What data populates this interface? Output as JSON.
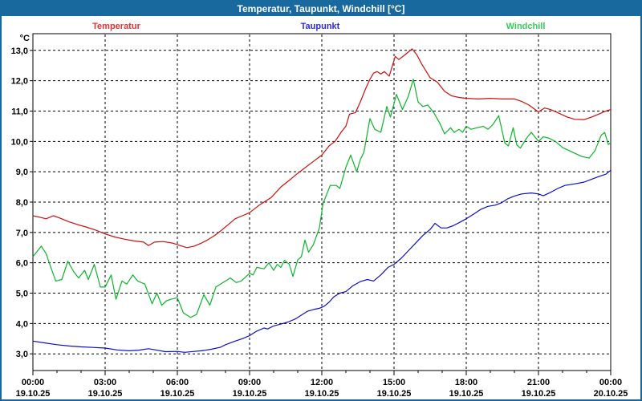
{
  "window": {
    "title": "Temperatur, Taupunkt, Windchill [°C]",
    "titlebar_color": "#186a9e",
    "border_color": "#186a9e",
    "background": "#ffffff"
  },
  "legend": {
    "items": [
      {
        "label": "Temperatur",
        "color": "#e03434"
      },
      {
        "label": "Taupunkt",
        "color": "#2c2cd8"
      },
      {
        "label": "Windchill",
        "color": "#35cc5e"
      }
    ]
  },
  "chart_data": {
    "type": "line",
    "title": "Temperatur, Taupunkt, Windchill [°C]",
    "grid": "dashed",
    "grid_color": "#000000",
    "legend_position": "top",
    "x_axis": {
      "range_hours": [
        0,
        24
      ],
      "major_tick_every_h": 3,
      "minor_tick_every_h": 1,
      "ticks": [
        {
          "h": 0,
          "time": "00:00",
          "date": "19.10.25"
        },
        {
          "h": 3,
          "time": "03:00",
          "date": "19.10.25"
        },
        {
          "h": 6,
          "time": "06:00",
          "date": "19.10.25"
        },
        {
          "h": 9,
          "time": "09:00",
          "date": "19.10.25"
        },
        {
          "h": 12,
          "time": "12:00",
          "date": "19.10.25"
        },
        {
          "h": 15,
          "time": "15:00",
          "date": "19.10.25"
        },
        {
          "h": 18,
          "time": "18:00",
          "date": "19.10.25"
        },
        {
          "h": 21,
          "time": "21:00",
          "date": "19.10.25"
        },
        {
          "h": 24,
          "time": "00:00",
          "date": "20.10.25"
        }
      ]
    },
    "y_axis": {
      "unit": "°C",
      "range": [
        2.45,
        13.55
      ],
      "ticks": [
        {
          "v": 13,
          "label": "13,0"
        },
        {
          "v": 12,
          "label": "12,0"
        },
        {
          "v": 11,
          "label": "11,0"
        },
        {
          "v": 10,
          "label": "10,0"
        },
        {
          "v": 9,
          "label": "9,0"
        },
        {
          "v": 8,
          "label": "8,0"
        },
        {
          "v": 7,
          "label": "7,0"
        },
        {
          "v": 6,
          "label": "6,0"
        },
        {
          "v": 5,
          "label": "5,0"
        },
        {
          "v": 4,
          "label": "4,0"
        },
        {
          "v": 3,
          "label": "3,0"
        }
      ]
    },
    "series": [
      {
        "name": "Temperatur",
        "color": "#cf0d0d",
        "points": [
          [
            0,
            7.55
          ],
          [
            0.3,
            7.5
          ],
          [
            0.55,
            7.45
          ],
          [
            0.85,
            7.55
          ],
          [
            1.1,
            7.48
          ],
          [
            1.5,
            7.35
          ],
          [
            1.9,
            7.25
          ],
          [
            2.2,
            7.18
          ],
          [
            2.6,
            7.08
          ],
          [
            3,
            6.95
          ],
          [
            3.4,
            6.85
          ],
          [
            3.8,
            6.78
          ],
          [
            4.2,
            6.72
          ],
          [
            4.6,
            6.68
          ],
          [
            4.8,
            6.57
          ],
          [
            5.05,
            6.68
          ],
          [
            5.4,
            6.7
          ],
          [
            5.8,
            6.65
          ],
          [
            6.1,
            6.57
          ],
          [
            6.4,
            6.5
          ],
          [
            6.7,
            6.55
          ],
          [
            7,
            6.65
          ],
          [
            7.25,
            6.75
          ],
          [
            7.55,
            6.9
          ],
          [
            7.8,
            7.05
          ],
          [
            8.1,
            7.25
          ],
          [
            8.4,
            7.45
          ],
          [
            8.7,
            7.55
          ],
          [
            9,
            7.65
          ],
          [
            9.4,
            7.9
          ],
          [
            9.9,
            8.15
          ],
          [
            10.3,
            8.5
          ],
          [
            10.7,
            8.75
          ],
          [
            11,
            8.95
          ],
          [
            11.5,
            9.25
          ],
          [
            12,
            9.55
          ],
          [
            12.3,
            9.85
          ],
          [
            12.55,
            10
          ],
          [
            12.8,
            10.3
          ],
          [
            13,
            10.5
          ],
          [
            13.15,
            10.9
          ],
          [
            13.4,
            10.95
          ],
          [
            13.6,
            11.3
          ],
          [
            13.8,
            11.7
          ],
          [
            14,
            12.05
          ],
          [
            14.15,
            12.25
          ],
          [
            14.3,
            12.3
          ],
          [
            14.45,
            12.22
          ],
          [
            14.6,
            12.3
          ],
          [
            14.8,
            12.15
          ],
          [
            15.05,
            12.8
          ],
          [
            15.2,
            12.7
          ],
          [
            15.45,
            12.85
          ],
          [
            15.75,
            13.05
          ],
          [
            15.95,
            12.85
          ],
          [
            16.15,
            12.55
          ],
          [
            16.5,
            12.1
          ],
          [
            16.8,
            11.95
          ],
          [
            17.1,
            11.65
          ],
          [
            17.4,
            11.5
          ],
          [
            17.7,
            11.45
          ],
          [
            18,
            11.42
          ],
          [
            18.5,
            11.4
          ],
          [
            19,
            11.42
          ],
          [
            19.5,
            11.4
          ],
          [
            20,
            11.4
          ],
          [
            20.3,
            11.32
          ],
          [
            20.6,
            11.2
          ],
          [
            21,
            10.97
          ],
          [
            21.25,
            11.1
          ],
          [
            21.5,
            11.05
          ],
          [
            21.8,
            10.95
          ],
          [
            22.2,
            10.8
          ],
          [
            22.5,
            10.73
          ],
          [
            22.9,
            10.72
          ],
          [
            23.2,
            10.8
          ],
          [
            23.5,
            10.9
          ],
          [
            23.8,
            11
          ],
          [
            24,
            11.05
          ]
        ]
      },
      {
        "name": "Taupunkt",
        "color": "#0d0dcf",
        "points": [
          [
            0,
            3.42
          ],
          [
            0.5,
            3.36
          ],
          [
            1,
            3.3
          ],
          [
            1.5,
            3.26
          ],
          [
            2,
            3.23
          ],
          [
            2.5,
            3.21
          ],
          [
            3,
            3.19
          ],
          [
            3.5,
            3.13
          ],
          [
            4,
            3.1
          ],
          [
            4.4,
            3.12
          ],
          [
            4.8,
            3.17
          ],
          [
            5.1,
            3.13
          ],
          [
            5.5,
            3.07
          ],
          [
            6,
            3.08
          ],
          [
            6.3,
            3.05
          ],
          [
            6.7,
            3.08
          ],
          [
            7,
            3.1
          ],
          [
            7.4,
            3.15
          ],
          [
            7.8,
            3.22
          ],
          [
            8,
            3.3
          ],
          [
            8.4,
            3.42
          ],
          [
            8.7,
            3.5
          ],
          [
            9,
            3.6
          ],
          [
            9.3,
            3.75
          ],
          [
            9.6,
            3.85
          ],
          [
            9.75,
            3.82
          ],
          [
            10,
            3.92
          ],
          [
            10.3,
            3.98
          ],
          [
            10.6,
            4.05
          ],
          [
            10.9,
            4.15
          ],
          [
            11.1,
            4.25
          ],
          [
            11.4,
            4.4
          ],
          [
            11.7,
            4.47
          ],
          [
            11.9,
            4.5
          ],
          [
            12.1,
            4.57
          ],
          [
            12.3,
            4.7
          ],
          [
            12.5,
            4.88
          ],
          [
            12.75,
            5
          ],
          [
            13,
            5.05
          ],
          [
            13.3,
            5.25
          ],
          [
            13.6,
            5.38
          ],
          [
            13.9,
            5.45
          ],
          [
            14.15,
            5.4
          ],
          [
            14.45,
            5.6
          ],
          [
            14.75,
            5.85
          ],
          [
            15,
            5.95
          ],
          [
            15.3,
            6.15
          ],
          [
            15.6,
            6.4
          ],
          [
            15.9,
            6.65
          ],
          [
            16.2,
            6.9
          ],
          [
            16.5,
            7.1
          ],
          [
            16.7,
            7.3
          ],
          [
            16.95,
            7.15
          ],
          [
            17.2,
            7.15
          ],
          [
            17.45,
            7.22
          ],
          [
            17.7,
            7.32
          ],
          [
            18,
            7.45
          ],
          [
            18.3,
            7.6
          ],
          [
            18.6,
            7.76
          ],
          [
            18.9,
            7.86
          ],
          [
            19.2,
            7.9
          ],
          [
            19.45,
            7.97
          ],
          [
            19.7,
            8.1
          ],
          [
            20,
            8.2
          ],
          [
            20.3,
            8.27
          ],
          [
            20.7,
            8.3
          ],
          [
            21,
            8.27
          ],
          [
            21.2,
            8.21
          ],
          [
            21.5,
            8.32
          ],
          [
            21.8,
            8.45
          ],
          [
            22.1,
            8.55
          ],
          [
            22.5,
            8.6
          ],
          [
            22.9,
            8.66
          ],
          [
            23.2,
            8.75
          ],
          [
            23.5,
            8.84
          ],
          [
            23.8,
            8.92
          ],
          [
            24,
            9.05
          ]
        ]
      },
      {
        "name": "Windchill",
        "color": "#0bb42a",
        "points": [
          [
            0,
            6.2
          ],
          [
            0.2,
            6.4
          ],
          [
            0.35,
            6.55
          ],
          [
            0.55,
            6.3
          ],
          [
            0.7,
            5.95
          ],
          [
            0.95,
            5.4
          ],
          [
            1.2,
            5.45
          ],
          [
            1.45,
            6.05
          ],
          [
            1.7,
            5.7
          ],
          [
            1.9,
            5.5
          ],
          [
            2.15,
            5.75
          ],
          [
            2.3,
            5.45
          ],
          [
            2.55,
            5.95
          ],
          [
            2.8,
            5.2
          ],
          [
            3,
            5.2
          ],
          [
            3.25,
            5.6
          ],
          [
            3.45,
            4.8
          ],
          [
            3.7,
            5.4
          ],
          [
            3.9,
            5.3
          ],
          [
            4.15,
            5.6
          ],
          [
            4.35,
            5.4
          ],
          [
            4.65,
            5.3
          ],
          [
            4.95,
            4.65
          ],
          [
            5.15,
            5
          ],
          [
            5.35,
            4.6
          ],
          [
            5.55,
            4.75
          ],
          [
            5.75,
            4.8
          ],
          [
            6,
            4.85
          ],
          [
            6.25,
            4.35
          ],
          [
            6.55,
            4.2
          ],
          [
            6.8,
            4.3
          ],
          [
            7.1,
            4.95
          ],
          [
            7.35,
            4.6
          ],
          [
            7.6,
            5.2
          ],
          [
            7.9,
            5.35
          ],
          [
            8.2,
            5.5
          ],
          [
            8.45,
            5.35
          ],
          [
            8.65,
            5.4
          ],
          [
            9,
            5.65
          ],
          [
            9.15,
            5.6
          ],
          [
            9.3,
            5.85
          ],
          [
            9.6,
            5.8
          ],
          [
            9.8,
            6
          ],
          [
            10,
            5.75
          ],
          [
            10.15,
            5.95
          ],
          [
            10.3,
            5.85
          ],
          [
            10.45,
            6.08
          ],
          [
            10.65,
            5.95
          ],
          [
            10.8,
            5.55
          ],
          [
            11,
            6.1
          ],
          [
            11.15,
            6.2
          ],
          [
            11.3,
            6.75
          ],
          [
            11.45,
            6.35
          ],
          [
            11.65,
            6.6
          ],
          [
            11.9,
            7.15
          ],
          [
            12.05,
            7.95
          ],
          [
            12.35,
            8.55
          ],
          [
            12.6,
            8.55
          ],
          [
            12.75,
            8.45
          ],
          [
            13,
            9.15
          ],
          [
            13.2,
            9.55
          ],
          [
            13.45,
            9
          ],
          [
            13.6,
            9.4
          ],
          [
            13.75,
            9.65
          ],
          [
            14,
            10.75
          ],
          [
            14.2,
            10.4
          ],
          [
            14.45,
            10.3
          ],
          [
            14.7,
            11.15
          ],
          [
            14.85,
            10.8
          ],
          [
            15.1,
            11.55
          ],
          [
            15.35,
            11.05
          ],
          [
            15.6,
            11.5
          ],
          [
            15.8,
            12.05
          ],
          [
            16,
            11.3
          ],
          [
            16.2,
            11.15
          ],
          [
            16.4,
            11.2
          ],
          [
            16.65,
            10.95
          ],
          [
            16.9,
            10.6
          ],
          [
            17.1,
            10.25
          ],
          [
            17.35,
            10.45
          ],
          [
            17.5,
            10.3
          ],
          [
            17.7,
            10.4
          ],
          [
            17.85,
            10.3
          ],
          [
            18,
            10.5
          ],
          [
            18.2,
            10.4
          ],
          [
            18.45,
            10.45
          ],
          [
            18.7,
            10.5
          ],
          [
            18.9,
            10.4
          ],
          [
            19.1,
            10.55
          ],
          [
            19.35,
            10.85
          ],
          [
            19.6,
            9.95
          ],
          [
            19.75,
            9.85
          ],
          [
            19.95,
            10.45
          ],
          [
            20.1,
            9.88
          ],
          [
            20.25,
            9.78
          ],
          [
            20.5,
            10.1
          ],
          [
            20.7,
            10.3
          ],
          [
            21,
            10
          ],
          [
            21.2,
            10.15
          ],
          [
            21.45,
            10.1
          ],
          [
            21.7,
            10
          ],
          [
            22,
            9.8
          ],
          [
            22.4,
            9.65
          ],
          [
            22.8,
            9.5
          ],
          [
            23.1,
            9.45
          ],
          [
            23.35,
            9.7
          ],
          [
            23.6,
            10.2
          ],
          [
            23.75,
            10.3
          ],
          [
            23.9,
            9.9
          ],
          [
            24,
            9.95
          ]
        ]
      }
    ]
  }
}
